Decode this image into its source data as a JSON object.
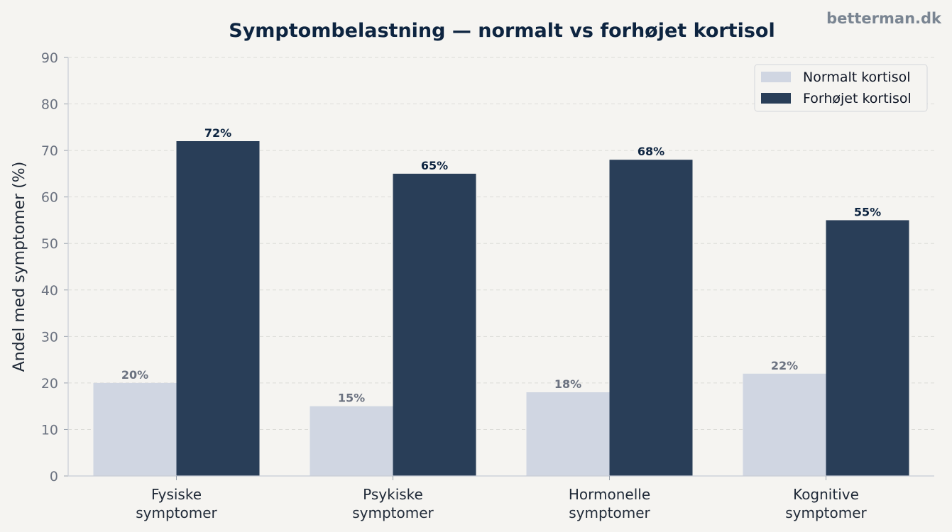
{
  "watermark": "betterman.dk",
  "chart_data": {
    "type": "bar",
    "title": "Symptombelastning — normalt vs forhøjet kortisol",
    "xlabel": "",
    "ylabel": "Andel med symptomer (%)",
    "ylim": [
      0,
      90
    ],
    "yticks": [
      0,
      10,
      20,
      30,
      40,
      50,
      60,
      70,
      80,
      90
    ],
    "grid": "horizontal dashed",
    "legend_position": "top-right",
    "categories": [
      [
        "Fysiske",
        "symptomer"
      ],
      [
        "Psykiske",
        "symptomer"
      ],
      [
        "Hormonelle",
        "symptomer"
      ],
      [
        "Kognitive",
        "symptomer"
      ]
    ],
    "series": [
      {
        "name": "Normalt kortisol",
        "values": [
          20,
          15,
          18,
          22
        ],
        "labels": [
          "20%",
          "15%",
          "18%",
          "22%"
        ],
        "color": "#d0d6e2",
        "label_color": "#6b7280"
      },
      {
        "name": "Forhøjet kortisol",
        "values": [
          72,
          65,
          68,
          55
        ],
        "labels": [
          "72%",
          "65%",
          "68%",
          "55%"
        ],
        "color": "#293e58",
        "label_color": "#0d2440"
      }
    ]
  }
}
